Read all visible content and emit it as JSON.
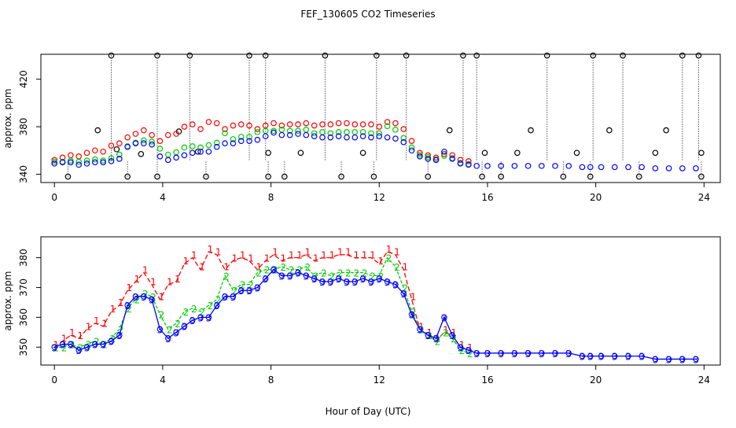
{
  "title": "FEF_130605  CO2 Timeseries",
  "xlabel": "Hour of Day (UTC)",
  "colors": {
    "series1": "#ff0000",
    "series2": "#00cc00",
    "series3": "#0000ff",
    "outlier": "#000000",
    "cyan": "#00cccc"
  },
  "chart_data": [
    {
      "type": "scatter",
      "ylabel": "approx. ppm",
      "xlim": [
        -0.5,
        24.6
      ],
      "ylim": [
        333,
        441
      ],
      "xticks": [
        0,
        4,
        8,
        12,
        16,
        20,
        24
      ],
      "yticks": [
        340,
        380,
        420
      ],
      "marker": "circle",
      "outliers": {
        "high_times": [
          2.1,
          3.8,
          5.0,
          7.2,
          7.8,
          10.0,
          11.9,
          13.0,
          15.1,
          15.6,
          18.2,
          19.9,
          21.0,
          23.2,
          23.8
        ],
        "high_value": 440,
        "low_times": [
          0.5,
          2.7,
          3.8,
          5.6,
          7.9,
          8.5,
          10.6,
          11.8,
          13.8,
          15.8,
          16.5,
          18.8,
          19.8,
          21.6,
          23.9
        ],
        "low_value": 338,
        "mid_points": [
          [
            1.6,
            377
          ],
          [
            2.3,
            361
          ],
          [
            3.2,
            357
          ],
          [
            4.6,
            376
          ],
          [
            5.3,
            359
          ],
          [
            7.9,
            358
          ],
          [
            9.1,
            358
          ],
          [
            11.4,
            358
          ],
          [
            14.6,
            377
          ],
          [
            15.9,
            358
          ],
          [
            17.1,
            358
          ],
          [
            17.6,
            377
          ],
          [
            19.3,
            358
          ],
          [
            20.5,
            377
          ],
          [
            22.2,
            358
          ],
          [
            22.6,
            377
          ],
          [
            23.9,
            358
          ]
        ]
      },
      "series": [
        {
          "name": "1",
          "color": "#ff0000",
          "x": [
            0,
            0.3,
            0.6,
            0.9,
            1.2,
            1.5,
            1.8,
            2.1,
            2.4,
            2.7,
            3.0,
            3.3,
            3.6,
            3.9,
            4.2,
            4.5,
            4.8,
            5.1,
            5.4,
            5.7,
            6.0,
            6.3,
            6.6,
            6.9,
            7.2,
            7.5,
            7.8,
            8.1,
            8.4,
            8.7,
            9.0,
            9.3,
            9.6,
            9.9,
            10.2,
            10.5,
            10.8,
            11.1,
            11.4,
            11.7,
            12.0,
            12.3,
            12.6,
            12.9,
            13.2,
            13.5,
            13.8,
            14.1,
            14.4,
            14.7,
            15.0,
            15.3
          ],
          "y": [
            350,
            352,
            354,
            353,
            356,
            358,
            357,
            362,
            364,
            369,
            372,
            375,
            371,
            366,
            371,
            372,
            378,
            380,
            376,
            382,
            381,
            376,
            379,
            380,
            379,
            376,
            379,
            381,
            379,
            380,
            380,
            381,
            379,
            380,
            380,
            381,
            381,
            380,
            380,
            380,
            378,
            382,
            381,
            376,
            366,
            356,
            354,
            352,
            355,
            354,
            350,
            349
          ]
        },
        {
          "name": "2",
          "color": "#00cc00",
          "x": [
            0,
            0.3,
            0.6,
            0.9,
            1.2,
            1.5,
            1.8,
            2.1,
            2.4,
            2.7,
            3.0,
            3.3,
            3.6,
            3.9,
            4.2,
            4.5,
            4.8,
            5.1,
            5.4,
            5.7,
            6.0,
            6.3,
            6.6,
            6.9,
            7.2,
            7.5,
            7.8,
            8.1,
            8.4,
            8.7,
            9.0,
            9.3,
            9.6,
            9.9,
            10.2,
            10.5,
            10.8,
            11.1,
            11.4,
            11.7,
            12.0,
            12.3,
            12.6,
            12.9,
            13.2,
            13.5,
            13.8,
            14.1,
            14.4,
            14.7,
            15.0,
            15.3
          ],
          "y": [
            350,
            350,
            351,
            350,
            351,
            352,
            351,
            353,
            356,
            363,
            366,
            368,
            367,
            361,
            356,
            358,
            362,
            363,
            362,
            364,
            366,
            374,
            369,
            371,
            371,
            375,
            376,
            376,
            377,
            376,
            376,
            377,
            374,
            375,
            374,
            375,
            375,
            375,
            375,
            374,
            374,
            380,
            377,
            370,
            362,
            356,
            354,
            352,
            355,
            353,
            349,
            348
          ]
        },
        {
          "name": "3",
          "color": "#0000ff",
          "x": [
            0,
            0.3,
            0.6,
            0.9,
            1.2,
            1.5,
            1.8,
            2.1,
            2.4,
            2.7,
            3.0,
            3.3,
            3.6,
            3.9,
            4.2,
            4.5,
            4.8,
            5.1,
            5.4,
            5.7,
            6.0,
            6.3,
            6.6,
            6.9,
            7.2,
            7.5,
            7.8,
            8.1,
            8.4,
            8.7,
            9.0,
            9.3,
            9.6,
            9.9,
            10.2,
            10.5,
            10.8,
            11.1,
            11.4,
            11.7,
            12.0,
            12.3,
            12.6,
            12.9,
            13.2,
            13.5,
            13.8,
            14.1,
            14.4,
            14.7,
            15.0,
            15.3,
            15.6,
            16.0,
            16.5,
            17.0,
            17.5,
            18.0,
            18.5,
            19.0,
            19.5,
            19.8,
            20.2,
            20.7,
            21.2,
            21.7,
            22.2,
            22.7,
            23.2,
            23.7
          ],
          "y": [
            350,
            351,
            351,
            349,
            350,
            351,
            351,
            352,
            354,
            364,
            367,
            367,
            366,
            356,
            353,
            355,
            357,
            359,
            360,
            360,
            364,
            367,
            367,
            369,
            369,
            370,
            373,
            376,
            374,
            374,
            375,
            374,
            373,
            372,
            372,
            373,
            372,
            372,
            373,
            372,
            373,
            372,
            371,
            368,
            361,
            356,
            354,
            353,
            360,
            354,
            350,
            349,
            348,
            348,
            348,
            348,
            348,
            348,
            348,
            348,
            347,
            347,
            347,
            347,
            347,
            347,
            346,
            346,
            346,
            346
          ]
        }
      ]
    },
    {
      "type": "line",
      "ylabel": "approx. ppm",
      "xlim": [
        -0.5,
        24.6
      ],
      "ylim": [
        344,
        387
      ],
      "xticks": [
        0,
        4,
        8,
        12,
        16,
        20,
        24
      ],
      "yticks": [
        350,
        360,
        370,
        380
      ],
      "marker": "digit-and-circle",
      "series_ref": "chart_data[0].series"
    }
  ]
}
